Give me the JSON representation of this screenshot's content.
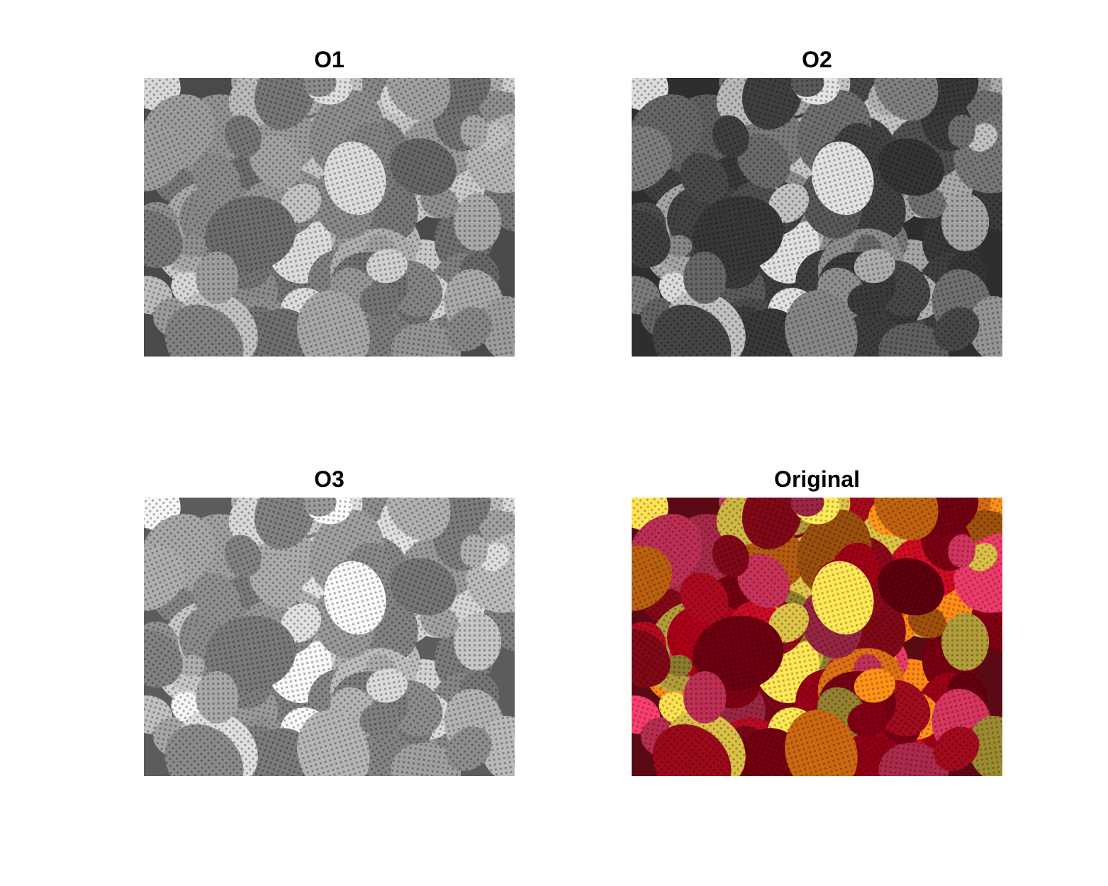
{
  "figure": {
    "panels": [
      {
        "title": "O1",
        "render": "grayscale",
        "tone": "mid"
      },
      {
        "title": "O2",
        "render": "grayscale",
        "tone": "dark"
      },
      {
        "title": "O3",
        "render": "grayscale",
        "tone": "light"
      },
      {
        "title": "Original",
        "render": "color",
        "tone": "color"
      }
    ]
  }
}
